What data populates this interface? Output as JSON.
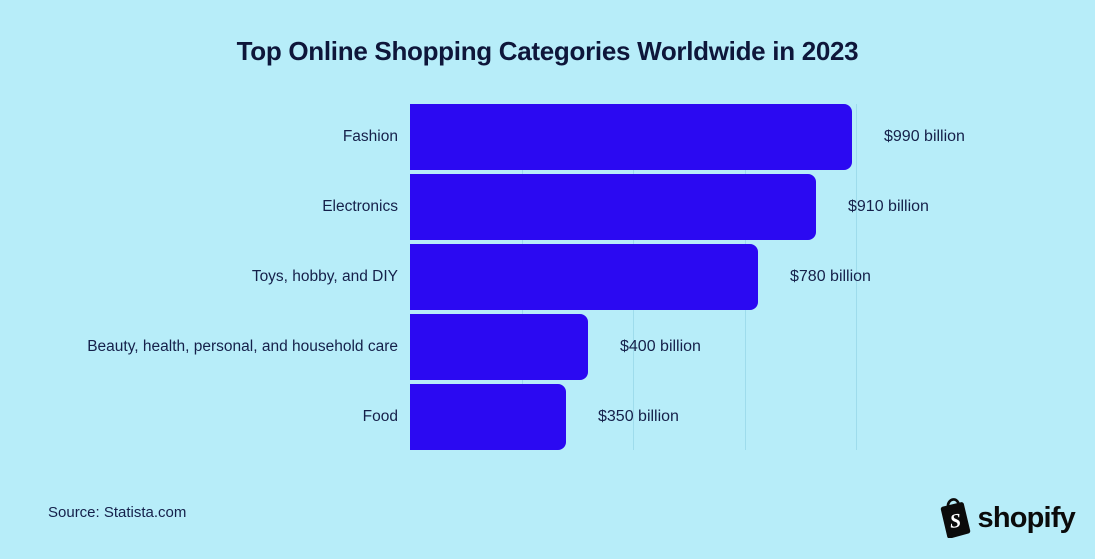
{
  "title": "Top Online Shopping Categories Worldwide in 2023",
  "source": "Source: Statista.com",
  "brand": {
    "wordmark": "shopify",
    "icon": "shopify-bag-icon"
  },
  "colors": {
    "background": "#b7edf9",
    "bar": "#2b09f2",
    "text": "#10183a",
    "gridline": "#9edcec"
  },
  "chart_data": {
    "type": "bar",
    "orientation": "horizontal",
    "title": "Top Online Shopping Categories Worldwide in 2023",
    "categories": [
      "Fashion",
      "Electronics",
      "Toys, hobby, and DIY",
      "Beauty, health, personal, and household care",
      "Food"
    ],
    "values": [
      990,
      910,
      780,
      400,
      350
    ],
    "value_labels": [
      "$990 billion",
      "$910 billion",
      "$780 billion",
      "$400 billion",
      "$350 billion"
    ],
    "unit": "USD billions",
    "xlabel": "",
    "ylabel": "",
    "xlim": [
      0,
      1000
    ],
    "gridlines_x": [
      250,
      500,
      750,
      1000
    ],
    "grid": true,
    "legend": false
  }
}
